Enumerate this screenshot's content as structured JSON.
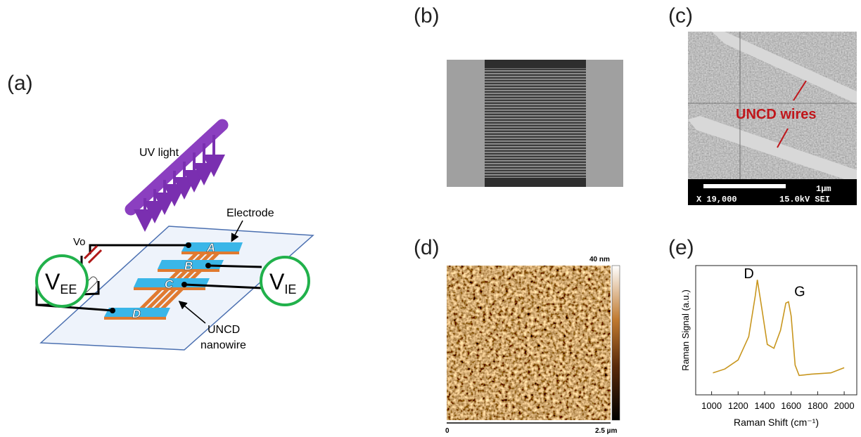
{
  "panel_a": {
    "label": "(a)",
    "uv_light": "UV light",
    "electrode": "Electrode",
    "vo": "Vo",
    "v_ee": {
      "main": "V",
      "sub": "EE"
    },
    "v_ie": {
      "main": "V",
      "sub": "IE"
    },
    "electrodes": [
      "A",
      "B",
      "C",
      "D"
    ],
    "nanowire": [
      "UNCD",
      "nanowire"
    ]
  },
  "panel_b": {
    "label": "(b)"
  },
  "panel_c": {
    "label": "(c)",
    "annotation": "UNCD wires",
    "scale_bar": "1μm",
    "magnification": "X 19,000",
    "voltage": "15.0kV SEI"
  },
  "panel_d": {
    "label": "(d)",
    "colorbar_max": "40 nm",
    "x_start": "0",
    "x_end": "2.5 µm"
  },
  "panel_e": {
    "label": "(e)"
  },
  "chart_data": {
    "type": "line",
    "xlabel": "Raman Shift (cm⁻¹)",
    "ylabel": "Raman Signal (a.u.)",
    "annotations": [
      "D",
      "G"
    ],
    "x": [
      1010,
      1100,
      1200,
      1280,
      1330,
      1345,
      1380,
      1420,
      1470,
      1520,
      1560,
      1580,
      1600,
      1630,
      1660,
      1750,
      1900,
      2000
    ],
    "series": [
      {
        "color": "#c8961e",
        "values": [
          1.7,
          2.0,
          2.7,
          4.5,
          7.7,
          8.9,
          6.6,
          3.9,
          3.6,
          5.0,
          7.1,
          7.2,
          6.1,
          2.3,
          1.5,
          1.6,
          1.7,
          2.1
        ]
      }
    ],
    "xlim": [
      880,
      2095
    ],
    "xticks": [
      1000,
      1200,
      1400,
      1600,
      1800,
      2000
    ],
    "ylim": [
      0,
      10
    ]
  }
}
